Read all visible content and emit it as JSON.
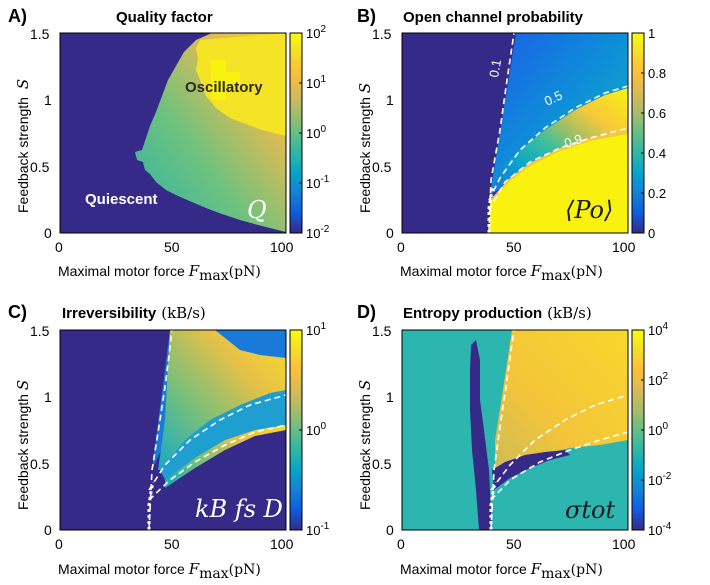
{
  "figure": {
    "x_axis": {
      "prefix": "Maximal motor force",
      "symbol": "F",
      "subscript": "max",
      "unit": "(pN)",
      "ticks": [
        "0",
        "50",
        "100"
      ]
    },
    "y_axis": {
      "prefix": "Feedback strength",
      "symbol": "S",
      "ticks": [
        "0",
        "0.5",
        "1",
        "1.5"
      ]
    }
  },
  "chart_data": [
    {
      "type": "heatmap",
      "letter": "A)",
      "title": "Quality factor",
      "title_unit": "",
      "symbol": "Q",
      "colorbar": {
        "scale": "log",
        "ticks": [
          "10^-2",
          "10^-1",
          "10^0",
          "10^1",
          "10^2"
        ],
        "range": [
          0.01,
          100
        ]
      },
      "annotations": [
        "Oscillatory",
        "Quiescent"
      ],
      "xlim": [
        0,
        100
      ],
      "ylim": [
        0,
        1.5
      ]
    },
    {
      "type": "heatmap",
      "letter": "B)",
      "title": "Open channel probability",
      "title_unit": "",
      "symbol": "⟨Po⟩",
      "colorbar": {
        "scale": "linear",
        "ticks": [
          "0",
          "0.2",
          "0.4",
          "0.6",
          "0.8",
          "1"
        ],
        "range": [
          0,
          1
        ]
      },
      "contour_labels": [
        "0.1",
        "0.5",
        "0.9"
      ],
      "xlim": [
        0,
        100
      ],
      "ylim": [
        0,
        1.5
      ]
    },
    {
      "type": "heatmap",
      "letter": "C)",
      "title": "Irreversibility",
      "title_unit": "(kB/s)",
      "symbol": "kB fs D",
      "colorbar": {
        "scale": "log",
        "ticks": [
          "10^-1",
          "10^0",
          "10^1"
        ],
        "range": [
          0.1,
          10
        ]
      },
      "xlim": [
        0,
        100
      ],
      "ylim": [
        0,
        1.5
      ]
    },
    {
      "type": "heatmap",
      "letter": "D)",
      "title": "Entropy production",
      "title_unit": "(kB/s)",
      "symbol": "σtot",
      "colorbar": {
        "scale": "log",
        "ticks": [
          "10^-4",
          "10^-2",
          "10^0",
          "10^2",
          "10^4"
        ],
        "range": [
          0.0001,
          10000
        ]
      },
      "xlim": [
        0,
        100
      ],
      "ylim": [
        0,
        1.5
      ]
    }
  ]
}
